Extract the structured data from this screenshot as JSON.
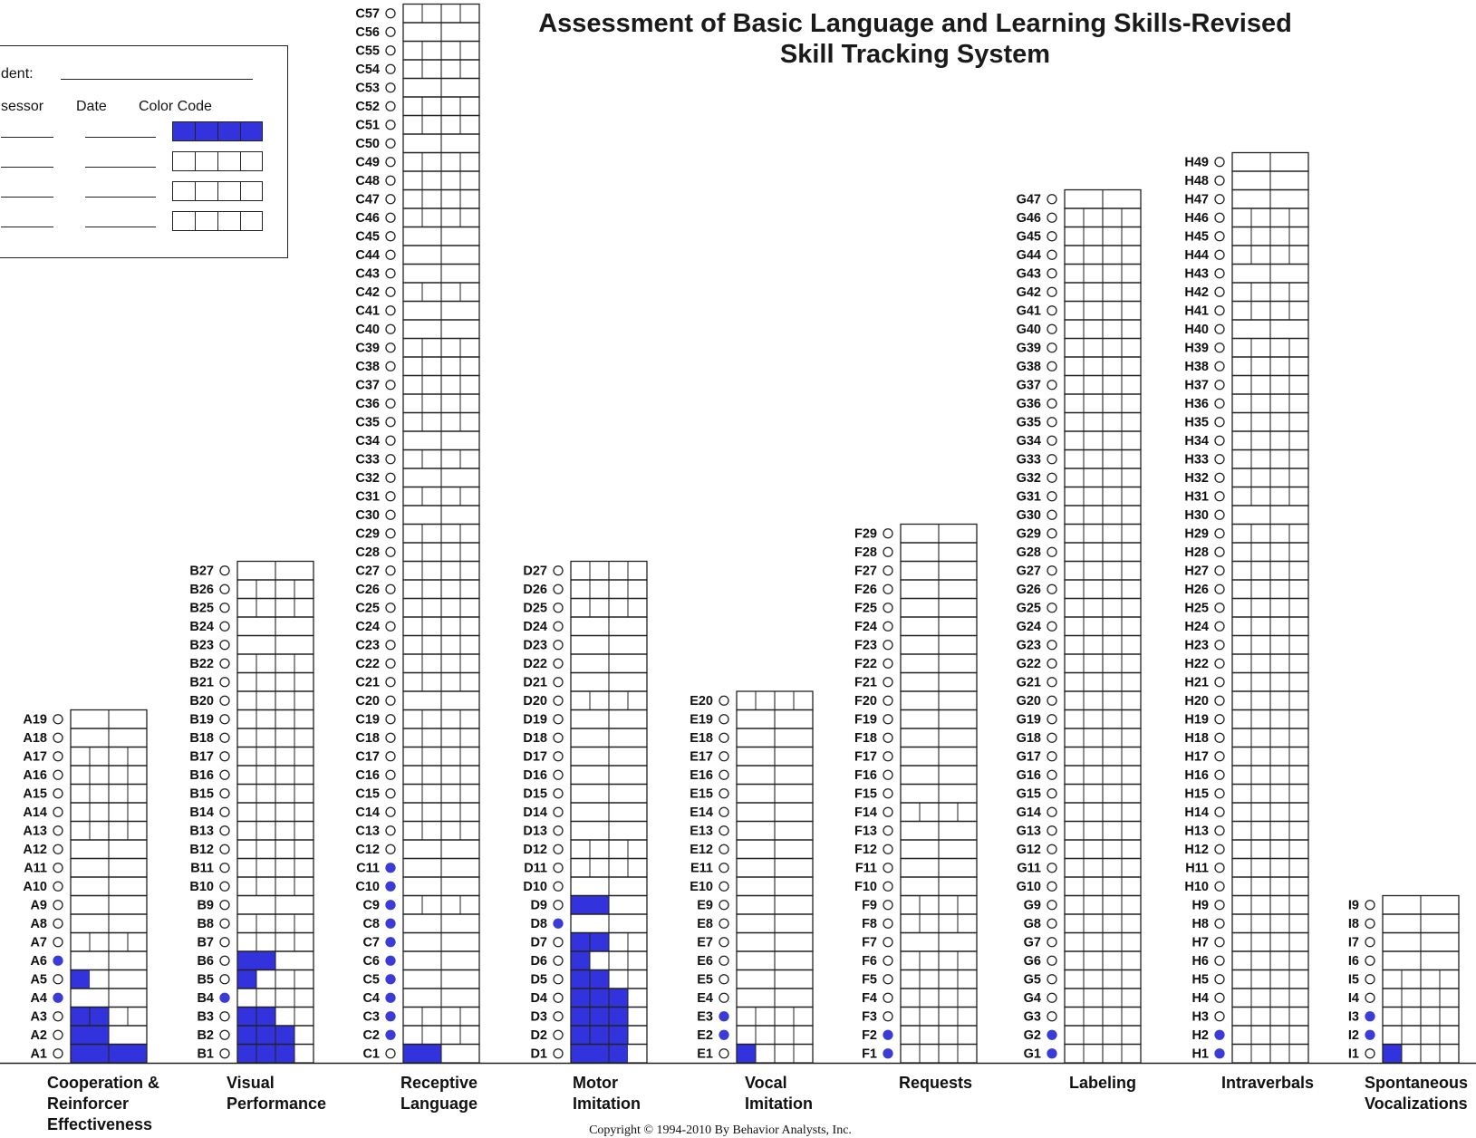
{
  "title": "Assessment of Basic Language and Learning Skills-Revised",
  "subtitle": "Skill Tracking System",
  "legend_box": {
    "student_label": "dent:",
    "assessor_header": "sessor",
    "date_header": "Date",
    "color_code_header": "Color Code",
    "colors": [
      "#3333dd",
      "#ffffff",
      "#ffffff",
      "#ffffff"
    ]
  },
  "colors": {
    "fill": "#3333dd",
    "dot": "#3b3bd6",
    "grid": "#222222"
  },
  "copyright": "Copyright © 1994-2010 By Behavior Analysts, Inc.",
  "chart_data": {
    "type": "table",
    "description_units": "items",
    "categories": [
      {
        "code": "A",
        "label_lines": [
          "Cooperation &",
          "Reinforcer",
          "Effectiveness"
        ],
        "total": 19,
        "filled_dots": [
          4,
          6
        ],
        "fills": [
          [
            1,
            0,
            2
          ],
          [
            1,
            2,
            4
          ],
          [
            2,
            0,
            2
          ],
          [
            3,
            0,
            2
          ],
          [
            5,
            0,
            1
          ]
        ],
        "quad": [
          3,
          7,
          13,
          14,
          15,
          16,
          17
        ]
      },
      {
        "code": "B",
        "label_lines": [
          "Visual",
          "Performance"
        ],
        "total": 27,
        "filled_dots": [
          4
        ],
        "fills": [
          [
            1,
            0,
            3
          ],
          [
            2,
            0,
            3
          ],
          [
            3,
            0,
            2
          ],
          [
            5,
            0,
            1
          ],
          [
            6,
            0,
            2
          ]
        ],
        "quad": [
          1,
          2,
          3,
          4,
          5,
          7,
          8,
          10,
          11,
          12,
          13,
          14,
          15,
          16,
          17,
          18,
          19,
          20,
          21,
          22,
          25,
          26
        ]
      },
      {
        "code": "C",
        "label_lines": [
          "Receptive",
          "Language"
        ],
        "total": 57,
        "filled_dots": [
          2,
          3,
          4,
          5,
          6,
          7,
          8,
          9,
          10,
          11
        ],
        "fills": [
          [
            1,
            0,
            2
          ]
        ],
        "quad": [
          2,
          3,
          9,
          13,
          14,
          15,
          16,
          17,
          18,
          19,
          21,
          22,
          23,
          24,
          25,
          26,
          27,
          28,
          29,
          31,
          33,
          35,
          36,
          37,
          38,
          39,
          42,
          46,
          47,
          48,
          49,
          51,
          52,
          54,
          55,
          57
        ]
      },
      {
        "code": "D",
        "label_lines": [
          "Motor",
          "Imitation"
        ],
        "total": 27,
        "filled_dots": [
          8
        ],
        "fills": [
          [
            1,
            0,
            3
          ],
          [
            2,
            0,
            3
          ],
          [
            3,
            0,
            3
          ],
          [
            4,
            0,
            3
          ],
          [
            5,
            0,
            2
          ],
          [
            6,
            0,
            1
          ],
          [
            7,
            0,
            2
          ],
          [
            9,
            0,
            2
          ]
        ],
        "quad": [
          2,
          3,
          4,
          5,
          6,
          7,
          11,
          12,
          20,
          25,
          26,
          27
        ]
      },
      {
        "code": "E",
        "label_lines": [
          "Vocal",
          "Imitation"
        ],
        "total": 20,
        "filled_dots": [
          2,
          3
        ],
        "fills": [
          [
            1,
            0,
            1
          ]
        ],
        "quad": [
          1,
          2,
          3,
          20
        ]
      },
      {
        "code": "F",
        "label_lines": [
          "Requests"
        ],
        "total": 29,
        "filled_dots": [
          1,
          2
        ],
        "fills": [],
        "quad": [
          1,
          2,
          3,
          4,
          5,
          6,
          8,
          9,
          14
        ]
      },
      {
        "code": "G",
        "label_lines": [
          "Labeling"
        ],
        "total": 47,
        "filled_dots": [
          1,
          2
        ],
        "fills": [],
        "quad": [
          1,
          2,
          3,
          4,
          5,
          6,
          7,
          8,
          9,
          10,
          11,
          12,
          13,
          14,
          15,
          16,
          17,
          18,
          19,
          20,
          21,
          22,
          23,
          24,
          25,
          26,
          27,
          28,
          29,
          30,
          31,
          32,
          33,
          34,
          35,
          36,
          37,
          38,
          39,
          40,
          41,
          42,
          43,
          44,
          45,
          46
        ]
      },
      {
        "code": "H",
        "label_lines": [
          "Intraverbals"
        ],
        "total": 49,
        "filled_dots": [
          1,
          2
        ],
        "fills": [],
        "quad": [
          1,
          2,
          3,
          4,
          5,
          6,
          7,
          8,
          9,
          10,
          11,
          12,
          13,
          14,
          15,
          16,
          17,
          18,
          19,
          20,
          21,
          22,
          23,
          24,
          25,
          26,
          27,
          28,
          29,
          31,
          32,
          33,
          34,
          35,
          36,
          37,
          38,
          39,
          41,
          42,
          44,
          45,
          46
        ]
      },
      {
        "code": "I",
        "label_lines": [
          "Spontaneous",
          "Vocalizations"
        ],
        "total": 9,
        "filled_dots": [
          2,
          3
        ],
        "fills": [
          [
            1,
            0,
            1
          ]
        ],
        "quad": [
          1,
          2,
          3,
          4,
          5
        ]
      }
    ]
  }
}
